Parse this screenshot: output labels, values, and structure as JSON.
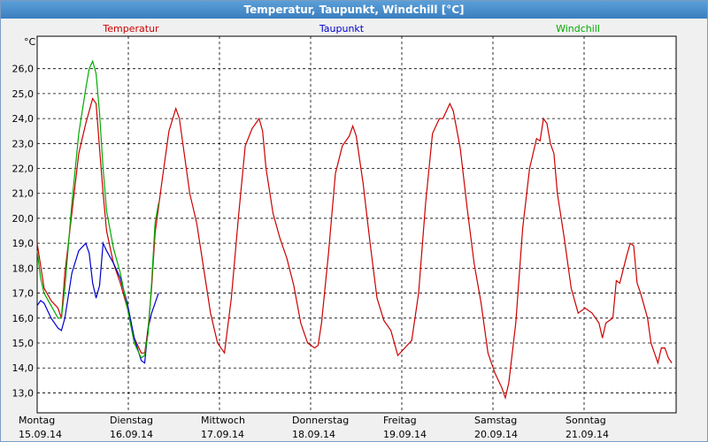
{
  "window": {
    "title": "Temperatur, Taupunkt, Windchill [°C]"
  },
  "chart_data": {
    "type": "line",
    "title": "Temperatur, Taupunkt, Windchill [°C]",
    "ylabel": "°C",
    "ylim": [
      12.2,
      27.3
    ],
    "yticks": [
      "13,0",
      "14,0",
      "15,0",
      "16,0",
      "17,0",
      "18,0",
      "19,0",
      "20,0",
      "21,0",
      "22,0",
      "23,0",
      "24,0",
      "25,0",
      "26,0"
    ],
    "grid": true,
    "legend_placement": "top",
    "x_day_labels": [
      {
        "day": "Montag",
        "date": "15.09.14"
      },
      {
        "day": "Dienstag",
        "date": "16.09.14"
      },
      {
        "day": "Mittwoch",
        "date": "17.09.14"
      },
      {
        "day": "Donnerstag",
        "date": "18.09.14"
      },
      {
        "day": "Freitag",
        "date": "19.09.14"
      },
      {
        "day": "Samstag",
        "date": "20.09.14"
      },
      {
        "day": "Sonntag",
        "date": "21.09.14"
      }
    ],
    "series": [
      {
        "name": "Temperatur",
        "color": "#cc0000",
        "points": [
          [
            0.0,
            19.0
          ],
          [
            0.1,
            17.2
          ],
          [
            0.2,
            16.7
          ],
          [
            0.3,
            16.4
          ],
          [
            0.35,
            16.0
          ],
          [
            0.4,
            17.8
          ],
          [
            0.5,
            20.2
          ],
          [
            0.6,
            22.6
          ],
          [
            0.7,
            23.8
          ],
          [
            0.8,
            24.8
          ],
          [
            0.85,
            24.6
          ],
          [
            0.9,
            22.8
          ],
          [
            0.95,
            21.0
          ],
          [
            1.0,
            19.5
          ],
          [
            1.1,
            18.2
          ],
          [
            1.2,
            17.4
          ],
          [
            1.3,
            16.4
          ],
          [
            1.4,
            15.2
          ],
          [
            1.5,
            14.6
          ],
          [
            1.55,
            14.6
          ],
          [
            1.6,
            15.6
          ],
          [
            1.65,
            17.2
          ],
          [
            1.7,
            19.4
          ],
          [
            1.8,
            21.5
          ],
          [
            1.9,
            23.5
          ],
          [
            2.0,
            24.4
          ],
          [
            2.05,
            24.0
          ],
          [
            2.1,
            23.0
          ],
          [
            2.2,
            21.0
          ],
          [
            2.3,
            19.8
          ],
          [
            2.4,
            18.0
          ],
          [
            2.5,
            16.2
          ],
          [
            2.6,
            15.0
          ],
          [
            2.7,
            14.6
          ],
          [
            2.8,
            16.8
          ],
          [
            2.9,
            20.0
          ],
          [
            3.0,
            22.9
          ],
          [
            3.1,
            23.6
          ],
          [
            3.2,
            24.0
          ],
          [
            3.25,
            23.5
          ],
          [
            3.3,
            22.0
          ],
          [
            3.4,
            20.2
          ],
          [
            3.5,
            19.2
          ],
          [
            3.6,
            18.4
          ],
          [
            3.7,
            17.3
          ],
          [
            3.8,
            15.8
          ],
          [
            3.9,
            15.0
          ],
          [
            4.0,
            14.8
          ],
          [
            4.05,
            14.9
          ],
          [
            4.1,
            15.8
          ],
          [
            4.2,
            18.6
          ],
          [
            4.3,
            21.8
          ],
          [
            4.4,
            22.9
          ],
          [
            4.5,
            23.3
          ],
          [
            4.55,
            23.7
          ],
          [
            4.6,
            23.3
          ],
          [
            4.7,
            21.4
          ],
          [
            4.8,
            19.0
          ],
          [
            4.9,
            16.8
          ],
          [
            5.0,
            15.9
          ],
          [
            5.1,
            15.5
          ],
          [
            5.2,
            14.5
          ],
          [
            5.3,
            14.8
          ],
          [
            5.4,
            15.1
          ],
          [
            5.5,
            17.0
          ],
          [
            5.6,
            20.6
          ],
          [
            5.7,
            23.4
          ],
          [
            5.8,
            24.0
          ],
          [
            5.85,
            24.0
          ],
          [
            5.9,
            24.3
          ],
          [
            5.95,
            24.6
          ],
          [
            6.0,
            24.3
          ],
          [
            6.1,
            22.8
          ],
          [
            6.2,
            20.4
          ],
          [
            6.3,
            18.2
          ],
          [
            6.4,
            16.6
          ],
          [
            6.5,
            14.6
          ],
          [
            6.6,
            13.8
          ],
          [
            6.7,
            13.2
          ],
          [
            6.75,
            12.8
          ],
          [
            6.8,
            13.4
          ],
          [
            6.9,
            15.8
          ],
          [
            7.0,
            19.6
          ],
          [
            7.1,
            22.0
          ],
          [
            7.2,
            23.2
          ],
          [
            7.25,
            23.1
          ],
          [
            7.3,
            24.0
          ],
          [
            7.35,
            23.8
          ],
          [
            7.4,
            23.0
          ],
          [
            7.45,
            22.6
          ],
          [
            7.5,
            21.0
          ],
          [
            7.6,
            19.2
          ],
          [
            7.7,
            17.2
          ],
          [
            7.8,
            16.2
          ],
          [
            7.85,
            16.3
          ],
          [
            7.9,
            16.4
          ],
          [
            8.0,
            16.2
          ],
          [
            8.1,
            15.8
          ],
          [
            8.15,
            15.2
          ],
          [
            8.2,
            15.8
          ],
          [
            8.3,
            16.0
          ],
          [
            8.35,
            17.5
          ],
          [
            8.4,
            17.4
          ],
          [
            8.5,
            18.5
          ],
          [
            8.55,
            19.0
          ],
          [
            8.6,
            18.9
          ],
          [
            8.65,
            17.4
          ],
          [
            8.7,
            17.0
          ],
          [
            8.8,
            16.0
          ],
          [
            8.85,
            15.0
          ],
          [
            8.9,
            14.6
          ],
          [
            8.95,
            14.2
          ],
          [
            9.0,
            14.8
          ],
          [
            9.05,
            14.8
          ],
          [
            9.1,
            14.4
          ],
          [
            9.15,
            14.2
          ]
        ]
      },
      {
        "name": "Taupunkt",
        "color": "#0000cc",
        "points": [
          [
            0.0,
            16.5
          ],
          [
            0.05,
            16.7
          ],
          [
            0.1,
            16.6
          ],
          [
            0.2,
            16.0
          ],
          [
            0.3,
            15.6
          ],
          [
            0.35,
            15.5
          ],
          [
            0.4,
            16.0
          ],
          [
            0.5,
            17.8
          ],
          [
            0.6,
            18.7
          ],
          [
            0.7,
            19.0
          ],
          [
            0.75,
            18.6
          ],
          [
            0.8,
            17.4
          ],
          [
            0.85,
            16.8
          ],
          [
            0.9,
            17.3
          ],
          [
            0.95,
            19.0
          ],
          [
            1.0,
            18.7
          ],
          [
            1.1,
            18.2
          ],
          [
            1.2,
            17.6
          ],
          [
            1.3,
            16.6
          ],
          [
            1.4,
            15.2
          ],
          [
            1.5,
            14.3
          ],
          [
            1.55,
            14.2
          ],
          [
            1.6,
            15.6
          ],
          [
            1.65,
            16.2
          ],
          [
            1.7,
            16.6
          ],
          [
            1.75,
            17.0
          ]
        ]
      },
      {
        "name": "Windchill",
        "color": "#00aa00",
        "points": [
          [
            0.0,
            18.7
          ],
          [
            0.05,
            17.6
          ],
          [
            0.1,
            17.0
          ],
          [
            0.2,
            16.5
          ],
          [
            0.3,
            16.0
          ],
          [
            0.35,
            16.0
          ],
          [
            0.4,
            17.2
          ],
          [
            0.5,
            20.6
          ],
          [
            0.6,
            23.4
          ],
          [
            0.7,
            25.2
          ],
          [
            0.75,
            26.0
          ],
          [
            0.8,
            26.3
          ],
          [
            0.85,
            25.8
          ],
          [
            0.9,
            24.2
          ],
          [
            0.95,
            22.0
          ],
          [
            1.0,
            20.3
          ],
          [
            1.1,
            18.8
          ],
          [
            1.2,
            17.8
          ],
          [
            1.3,
            16.4
          ],
          [
            1.4,
            15.0
          ],
          [
            1.5,
            14.4
          ],
          [
            1.55,
            14.5
          ],
          [
            1.6,
            15.4
          ],
          [
            1.65,
            17.4
          ],
          [
            1.7,
            19.8
          ],
          [
            1.75,
            20.6
          ]
        ]
      }
    ]
  }
}
